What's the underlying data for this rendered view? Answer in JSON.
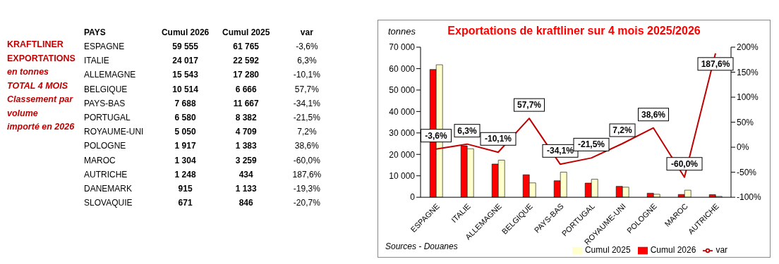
{
  "chart_data": [
    {
      "type": "other",
      "annotations": [
        "KRAFTLINER",
        "EXPORTATIONS",
        "en tonnes",
        "TOTAL 4 MOIS",
        "Classement par",
        "volume",
        "importé en 2026"
      ],
      "xlabel": "PAYS",
      "categories": [
        "ESPAGNE",
        "ITALIE",
        "ALLEMAGNE",
        "BELGIQUE",
        "PAYS-BAS",
        "PORTUGAL",
        "ROYAUME-UNI",
        "POLOGNE",
        "MAROC",
        "AUTRICHE",
        "DANEMARK",
        "SLOVAQUIE"
      ],
      "series": [
        {
          "name": "Cumul 2026",
          "values": [
            59555,
            24017,
            15543,
            10514,
            7688,
            6580,
            5050,
            1917,
            1304,
            1248,
            915,
            671
          ],
          "value_labels": [
            "59 555",
            "24 017",
            "15 543",
            "10 514",
            "7 688",
            "6 580",
            "5 050",
            "1 917",
            "1 304",
            "1 248",
            "915",
            "671"
          ]
        },
        {
          "name": "Cumul 2025",
          "values": [
            61765,
            22592,
            17280,
            6666,
            11667,
            8382,
            4709,
            1383,
            3259,
            434,
            1133,
            846
          ],
          "value_labels": [
            "61 765",
            "22 592",
            "17 280",
            "6 666",
            "11 667",
            "8 382",
            "4 709",
            "1 383",
            "3 259",
            "434",
            "1 133",
            "846"
          ]
        },
        {
          "name": "var",
          "values": [
            -3.6,
            6.3,
            -10.1,
            57.7,
            -34.1,
            -21.5,
            7.2,
            38.6,
            -60.0,
            187.6,
            -19.3,
            -20.7
          ],
          "value_labels": [
            "-3,6%",
            "6,3%",
            "-10,1%",
            "57,7%",
            "-34,1%",
            "-21,5%",
            "7,2%",
            "38,6%",
            "-60,0%",
            "187,6%",
            "-19,3%",
            "-20,7%"
          ]
        }
      ]
    },
    {
      "type": "bar",
      "title": "Exportations de kraftliner sur 4 mois 2025/2026",
      "ylabel": "tonnes",
      "annotations": [
        "Sources - Douanes"
      ],
      "categories": [
        "ESPAGNE",
        "ITALIE",
        "ALLEMAGNE",
        "BELGIQUE",
        "PAYS-BAS",
        "PORTUGAL",
        "ROYAUME-UNI",
        "POLOGNE",
        "MAROC",
        "AUTRICHE"
      ],
      "ylim": [
        0,
        70000
      ],
      "yticks": [
        0,
        {
          "value": 10000,
          "label": "10 000"
        },
        {
          "value": 20000,
          "label": "20 000"
        },
        {
          "value": 30000,
          "label": "30 000"
        },
        {
          "value": 40000,
          "label": "40 000"
        },
        {
          "value": 50000,
          "label": "50 000"
        },
        {
          "value": 60000,
          "label": "60 000"
        },
        {
          "value": 70000,
          "label": "70 000"
        }
      ],
      "y2lim": [
        -100,
        200
      ],
      "y2ticks": [
        {
          "value": -100,
          "label": "-100%"
        },
        {
          "value": -50,
          "label": "-50%"
        },
        {
          "value": 0,
          "label": "0%"
        },
        {
          "value": 50,
          "label": "50%"
        },
        {
          "value": 100,
          "label": "100%"
        },
        {
          "value": 150,
          "label": "150%"
        },
        {
          "value": 200,
          "label": "200%"
        }
      ],
      "legend": "bottom",
      "grid": false,
      "series": [
        {
          "name": "Cumul 2026",
          "color": "#ff0000",
          "values": [
            59600,
            24000,
            15500,
            10500,
            7700,
            6600,
            5100,
            1900,
            1300,
            1200
          ]
        },
        {
          "name": "Cumul 2025",
          "color": "#ffffcc",
          "values": [
            61800,
            22600,
            17300,
            6700,
            11700,
            8400,
            4700,
            1400,
            3300,
            400
          ]
        },
        {
          "name": "var",
          "type": "line",
          "axis": "y2",
          "color": "#c00000",
          "marker": "none",
          "values": [
            -3.6,
            6.3,
            -10.1,
            57.7,
            -34.1,
            -21.5,
            7.2,
            38.6,
            -60.0,
            187.6
          ],
          "value_labels": [
            "-3,6%",
            "6,3%",
            "-10,1%",
            "57,7%",
            "-34,1%",
            "-21,5%",
            "7,2%",
            "38,6%",
            "-60,0%",
            "187,6%"
          ]
        }
      ]
    }
  ]
}
